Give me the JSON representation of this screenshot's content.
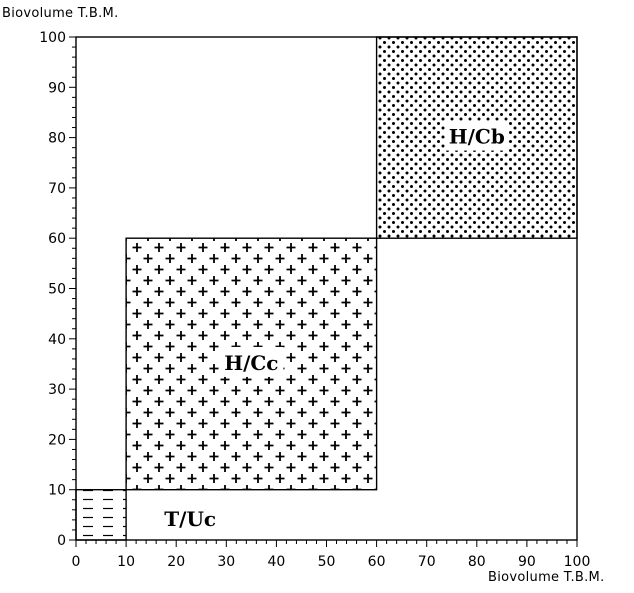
{
  "chart_data": {
    "type": "zone_diagram",
    "xlabel": "Biovolume T.B.M.",
    "ylabel": "Biovolume T.B.M.",
    "xlim": [
      0,
      100
    ],
    "ylim": [
      0,
      100
    ],
    "xticks": [
      "0",
      "10",
      "20",
      "30",
      "40",
      "50",
      "60",
      "70",
      "80",
      "90",
      "100"
    ],
    "yticks": [
      "0",
      "10",
      "20",
      "30",
      "40",
      "50",
      "60",
      "70",
      "80",
      "90",
      "100"
    ],
    "grid": false,
    "zones": [
      {
        "label": "H/Cb",
        "x": [
          60,
          100
        ],
        "y": [
          60,
          100
        ],
        "pattern": "dots"
      },
      {
        "label": "H/Cc",
        "x": [
          10,
          60
        ],
        "y": [
          10,
          60
        ],
        "pattern": "crosses"
      },
      {
        "label": "",
        "x": [
          0,
          10
        ],
        "y": [
          0,
          10
        ],
        "pattern": "dashes"
      }
    ],
    "annotations": [
      {
        "text": "T/Uc",
        "x": 25,
        "y": 4
      }
    ]
  }
}
